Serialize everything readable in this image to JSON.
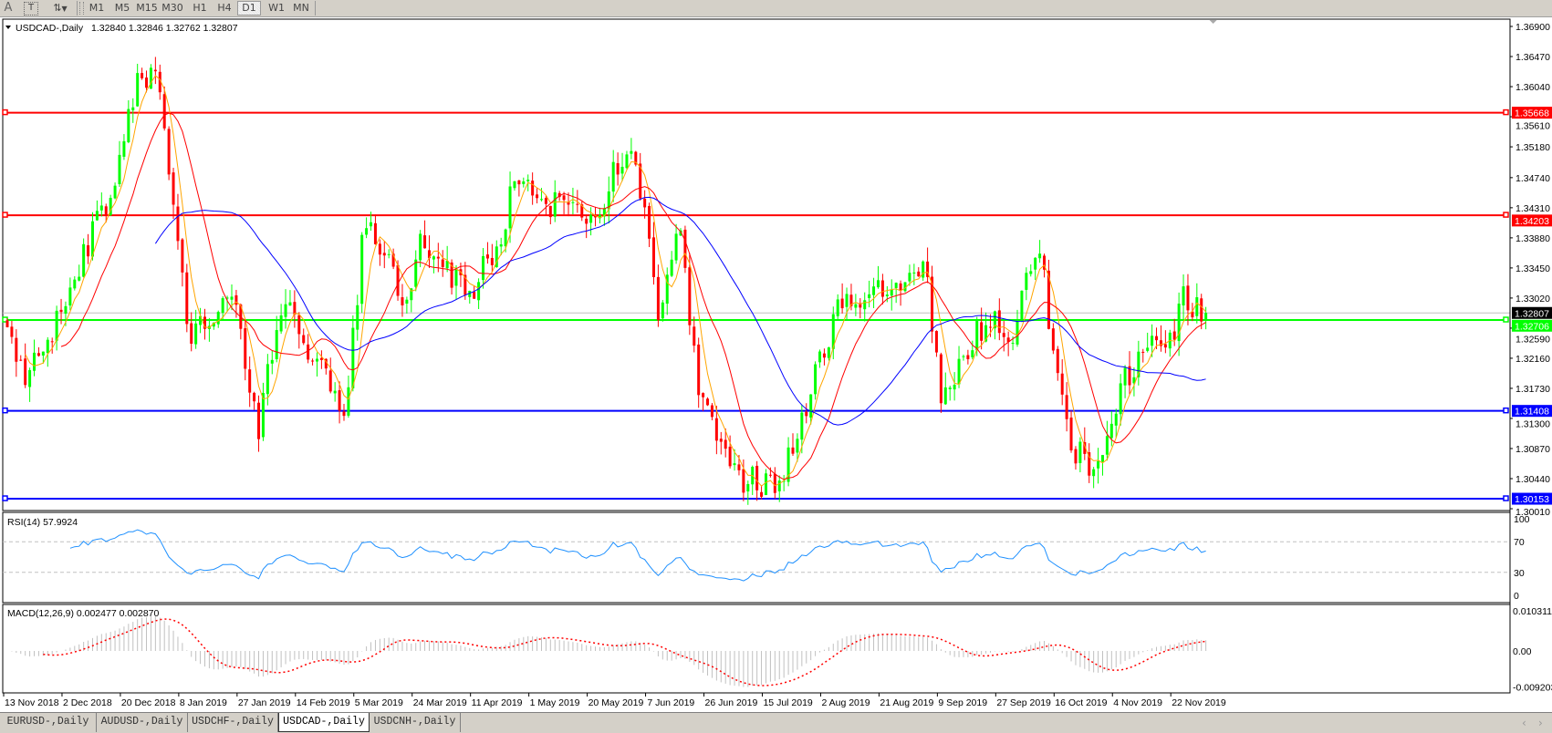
{
  "toolbar": {
    "text_tool": "A",
    "text_label_tool": "T",
    "timeframes": [
      "M1",
      "M5",
      "M15",
      "M30",
      "H1",
      "H4",
      "D1",
      "W1",
      "MN"
    ],
    "active_timeframe": "D1"
  },
  "main": {
    "symbol_label": "USDCAD-,Daily",
    "ohlc": "1.32840 1.32846 1.32762 1.32807"
  },
  "rsi": {
    "label": "RSI(14) 57.9924",
    "ticks": [
      {
        "v": 100,
        "t": "100"
      },
      {
        "v": 70,
        "t": "70"
      },
      {
        "v": 30,
        "t": "30"
      },
      {
        "v": 0,
        "t": "0"
      }
    ],
    "levels": [
      70,
      30
    ],
    "color": "#1e90ff"
  },
  "macd": {
    "label": "MACD(12,26,9) 0.002477 0.002870",
    "ticks": [
      {
        "v": 0.010311,
        "t": "0.010311"
      },
      {
        "v": 0,
        "t": "0.00"
      },
      {
        "v": -0.009203,
        "t": "-0.009203"
      }
    ],
    "histogram_color": "#c0c0c0",
    "signal_color": "#ff0000"
  },
  "tabs": [
    "EURUSD-,Daily",
    "AUDUSD-,Daily",
    "USDCHF-,Daily",
    "USDCAD-,Daily",
    "USDCNH-,Daily"
  ],
  "active_tab": 3,
  "chart_data": {
    "type": "candlestick",
    "symbol": "USDCAD-",
    "timeframe": "Daily",
    "bull_color": "#00ff00",
    "bear_color": "#ff0000",
    "price_ticks": [
      "1.36900",
      "1.36470",
      "1.36040",
      "1.35610",
      "1.35180",
      "1.34740",
      "1.34310",
      "1.33880",
      "1.33450",
      "1.33020",
      "1.32590",
      "1.32160",
      "1.31730",
      "1.31300",
      "1.30870",
      "1.30440",
      "1.30010"
    ],
    "x_tick_labels": [
      "13 Nov 2018",
      "2 Dec 2018",
      "20 Dec 2018",
      "8 Jan 2019",
      "27 Jan 2019",
      "14 Feb 2019",
      "5 Mar 2019",
      "24 Mar 2019",
      "11 Apr 2019",
      "1 May 2019",
      "20 May 2019",
      "7 Jun 2019",
      "26 Jun 2019",
      "15 Jul 2019",
      "2 Aug 2019",
      "21 Aug 2019",
      "9 Sep 2019",
      "27 Sep 2019",
      "16 Oct 2019",
      "4 Nov 2019",
      "22 Nov 2019"
    ],
    "close_keypoints": [
      [
        "2018-11-13",
        1.324
      ],
      [
        "2018-11-19",
        1.319
      ],
      [
        "2018-11-29",
        1.327
      ],
      [
        "2018-12-08",
        1.337
      ],
      [
        "2018-12-18",
        1.348
      ],
      [
        "2018-12-24",
        1.36
      ],
      [
        "2018-12-31",
        1.363
      ],
      [
        "2019-01-05",
        1.345
      ],
      [
        "2019-01-10",
        1.325
      ],
      [
        "2019-01-15",
        1.327
      ],
      [
        "2019-01-25",
        1.33
      ],
      [
        "2019-02-01",
        1.311
      ],
      [
        "2019-02-09",
        1.33
      ],
      [
        "2019-02-16",
        1.322
      ],
      [
        "2019-02-22",
        1.319
      ],
      [
        "2019-03-01",
        1.313
      ],
      [
        "2019-03-07",
        1.34
      ],
      [
        "2019-03-13",
        1.338
      ],
      [
        "2019-03-20",
        1.33
      ],
      [
        "2019-03-26",
        1.338
      ],
      [
        "2019-04-01",
        1.334
      ],
      [
        "2019-04-11",
        1.332
      ],
      [
        "2019-04-20",
        1.339
      ],
      [
        "2019-04-26",
        1.348
      ],
      [
        "2019-05-03",
        1.345
      ],
      [
        "2019-05-13",
        1.342
      ],
      [
        "2019-05-22",
        1.343
      ],
      [
        "2019-06-01",
        1.352
      ],
      [
        "2019-06-06",
        1.34
      ],
      [
        "2019-06-10",
        1.327
      ],
      [
        "2019-06-17",
        1.34
      ],
      [
        "2019-06-22",
        1.32
      ],
      [
        "2019-06-28",
        1.311
      ],
      [
        "2019-07-05",
        1.305
      ],
      [
        "2019-07-12",
        1.304
      ],
      [
        "2019-07-18",
        1.303
      ],
      [
        "2019-07-25",
        1.31
      ],
      [
        "2019-07-31",
        1.32
      ],
      [
        "2019-08-06",
        1.328
      ],
      [
        "2019-08-13",
        1.33
      ],
      [
        "2019-08-19",
        1.332
      ],
      [
        "2019-08-28",
        1.331
      ],
      [
        "2019-09-04",
        1.335
      ],
      [
        "2019-09-09",
        1.315
      ],
      [
        "2019-09-12",
        1.318
      ],
      [
        "2019-09-19",
        1.325
      ],
      [
        "2019-09-26",
        1.327
      ],
      [
        "2019-10-02",
        1.325
      ],
      [
        "2019-10-06",
        1.335
      ],
      [
        "2019-10-11",
        1.336
      ],
      [
        "2019-10-14",
        1.322
      ],
      [
        "2019-10-20",
        1.31
      ],
      [
        "2019-10-27",
        1.305
      ],
      [
        "2019-10-31",
        1.31
      ],
      [
        "2019-11-06",
        1.318
      ],
      [
        "2019-11-14",
        1.325
      ],
      [
        "2019-11-19",
        1.321
      ],
      [
        "2019-11-24",
        1.33
      ],
      [
        "2019-11-28",
        1.329
      ],
      [
        "2019-12-02",
        1.32807
      ]
    ],
    "moving_averages": [
      {
        "color": "#ffa500"
      },
      {
        "color": "#ff0000"
      },
      {
        "color": "#0000ff"
      }
    ],
    "levels": [
      {
        "price": 1.35668,
        "label": "1.35668",
        "color": "#ff0000"
      },
      {
        "price": 1.34203,
        "label": "1.34203",
        "color": "#ff0000"
      },
      {
        "price": 1.32706,
        "label": "1.32706",
        "color": "#00ff00"
      },
      {
        "price": 1.31408,
        "label": "1.31408",
        "color": "#0000ff"
      },
      {
        "price": 1.30153,
        "label": "1.30153",
        "color": "#0000ff"
      }
    ],
    "bid": {
      "price": 1.32807,
      "label": "1.32807"
    },
    "grid": false
  }
}
